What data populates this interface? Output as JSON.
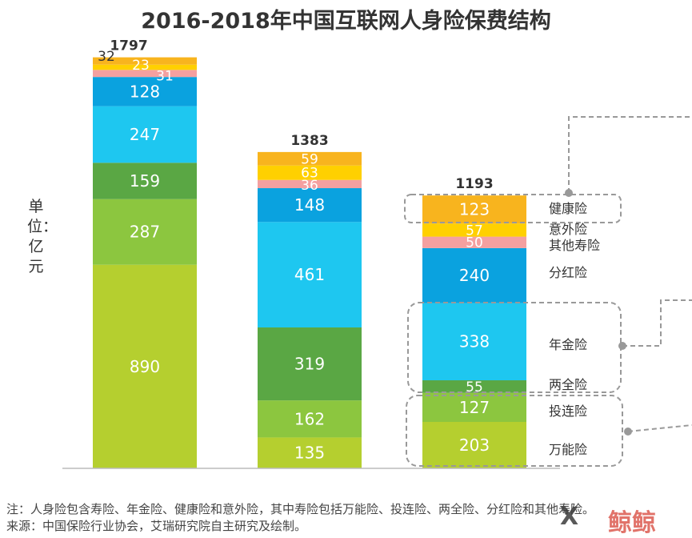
{
  "title": "2016-2018年中国互联网人身险保费结构",
  "unit_label": "单位：亿元",
  "footnote": {
    "line1": "注：人身险包含寿险、年金险、健康险和意外险，其中寿险包括万能险、投连险、两全险、分红险和其他寿险。",
    "line2": "来源：中国保险行业协会，艾瑞研究院自主研究及绘制。"
  },
  "watermark": {
    "logo_text": "X",
    "text": "鲸鲸"
  },
  "chart_data": {
    "type": "bar",
    "stacked": true,
    "categories": [
      "",
      "",
      ""
    ],
    "totals": [
      1797,
      1383,
      1193
    ],
    "ylim": [
      0,
      1797
    ],
    "series": [
      {
        "name": "万能险",
        "values": [
          890,
          135,
          203
        ],
        "color": "#b5cf2f"
      },
      {
        "name": "投连险",
        "values": [
          287,
          162,
          127
        ],
        "color": "#8cc63f"
      },
      {
        "name": "两全险",
        "values": [
          159,
          319,
          55
        ],
        "color": "#5aa744"
      },
      {
        "name": "年金险",
        "values": [
          247,
          461,
          338
        ],
        "color": "#1ec7f0"
      },
      {
        "name": "分红险",
        "values": [
          128,
          148,
          240
        ],
        "color": "#0aa2df"
      },
      {
        "name": "其他寿险",
        "values": [
          31,
          36,
          50
        ],
        "color": "#f4a0a0"
      },
      {
        "name": "意外险",
        "values": [
          23,
          63,
          57
        ],
        "color": "#ffd000"
      },
      {
        "name": "健康险",
        "values": [
          32,
          59,
          123
        ],
        "color": "#f8b41e"
      }
    ],
    "label_colors": {
      "inside": "#ffffff",
      "dark": "#333333"
    },
    "axis_color": "#bbbbbb",
    "bracket_color": "#999999"
  }
}
